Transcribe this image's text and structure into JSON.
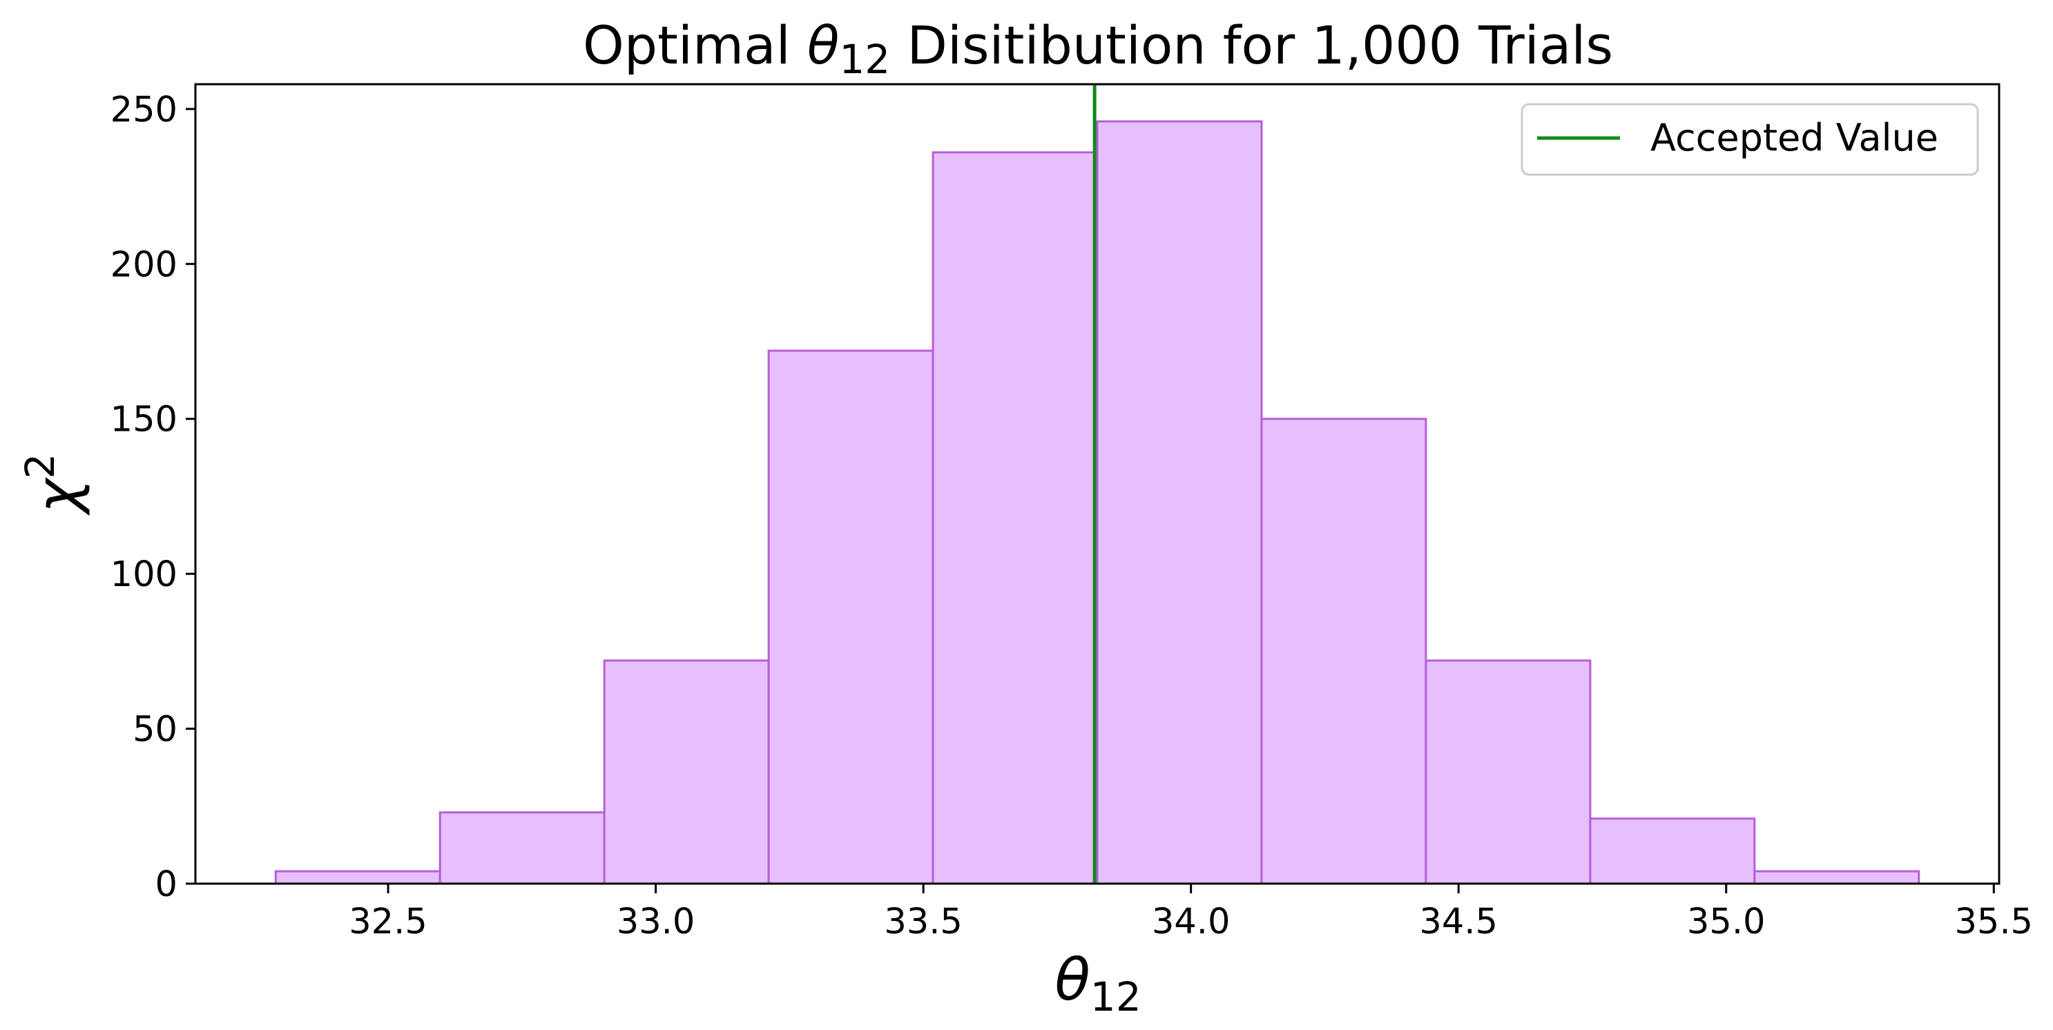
{
  "chart_data": {
    "type": "bar",
    "title": {
      "prefix": "Optimal ",
      "symbol": "θ",
      "subscript": "12",
      "suffix": " Disitibution for 1,000 Trials"
    },
    "xlabel": {
      "symbol": "θ",
      "subscript": "12"
    },
    "ylabel": {
      "symbol": "χ",
      "superscript": "2"
    },
    "xlim": [
      32.14,
      35.51
    ],
    "ylim": [
      0,
      258
    ],
    "x_ticks": [
      32.5,
      33.0,
      33.5,
      34.0,
      34.5,
      35.0,
      35.5
    ],
    "x_tick_labels": [
      "32.5",
      "33.0",
      "33.5",
      "34.0",
      "34.5",
      "35.0",
      "35.5"
    ],
    "y_ticks": [
      0,
      50,
      100,
      150,
      200,
      250
    ],
    "y_tick_labels": [
      "0",
      "50",
      "100",
      "150",
      "200",
      "250"
    ],
    "bin_edges": [
      32.29,
      32.597,
      32.904,
      33.211,
      33.518,
      33.825,
      34.132,
      34.439,
      34.746,
      35.053,
      35.36
    ],
    "counts": [
      4,
      23,
      72,
      172,
      236,
      246,
      150,
      72,
      21,
      4
    ],
    "bar_fill": "#e6bffc",
    "bar_edge": "#b65fd6",
    "reference_line": {
      "x": 33.82,
      "color": "#14891a"
    },
    "grid": false,
    "legend": {
      "position": "top-right",
      "entries": [
        {
          "label": "Accepted Value",
          "color": "#14891a"
        }
      ]
    }
  }
}
